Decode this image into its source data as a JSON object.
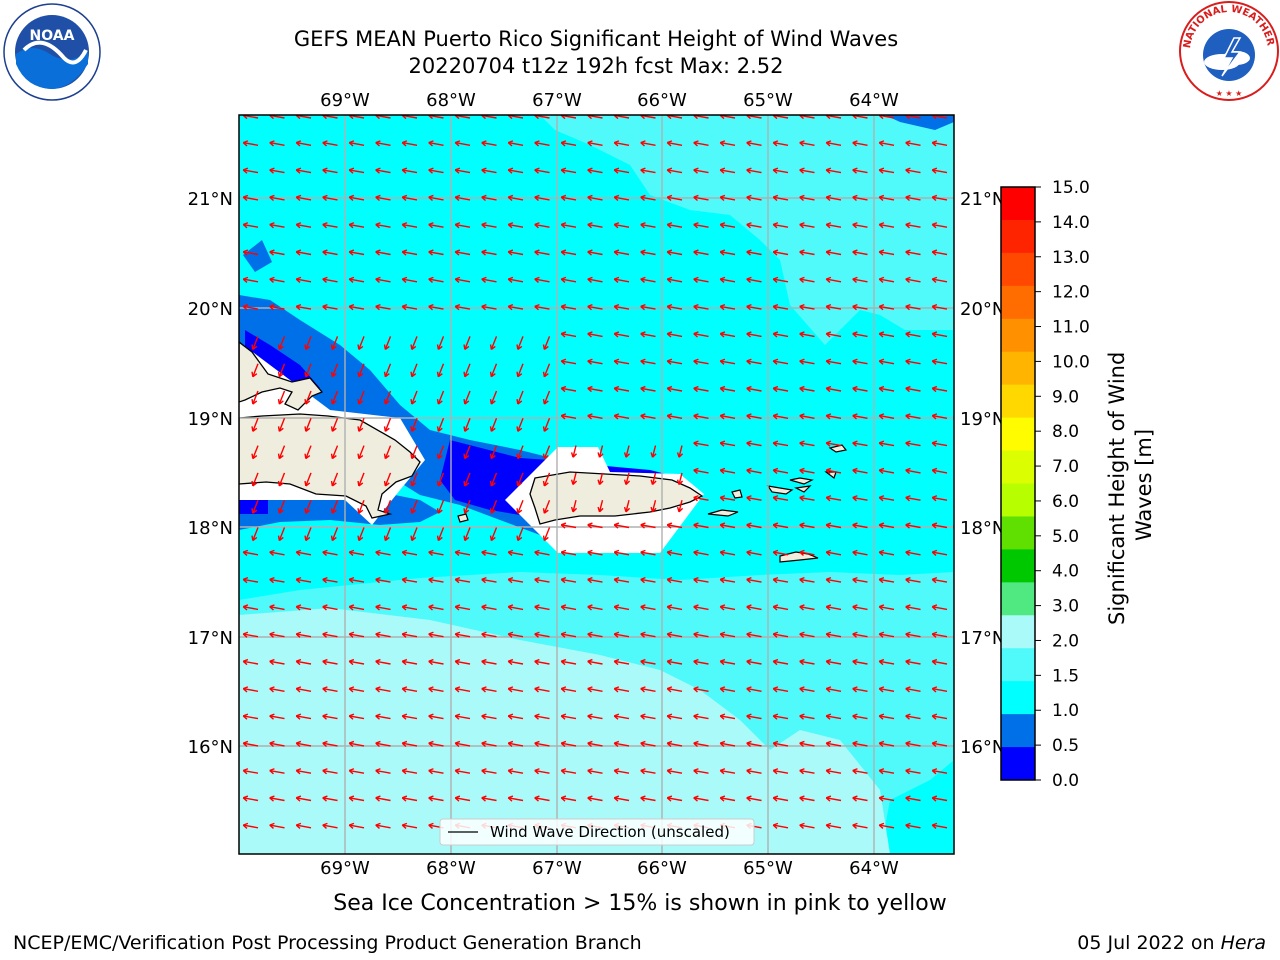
{
  "header": {
    "title_line1": "GEFS MEAN Puerto Rico Significant Height of Wind Waves",
    "title_line2": "20220704 t12z 192h fcst   Max: 2.52"
  },
  "map": {
    "lon_labels": [
      "69°W",
      "68°W",
      "67°W",
      "66°W",
      "65°W",
      "64°W"
    ],
    "lat_labels": [
      "21°N",
      "20°N",
      "19°N",
      "18°N",
      "17°N",
      "16°N"
    ],
    "legend_label": "Wind Wave Direction (unscaled)",
    "arrow_color": "#ff0000",
    "land_color": "#efedde",
    "wave_direction": "westward"
  },
  "colorbar": {
    "label": "Significant Height of Wind Waves [m]",
    "ticks": [
      "15.0",
      "14.0",
      "13.0",
      "12.0",
      "11.0",
      "10.0",
      "9.0",
      "8.0",
      "7.0",
      "6.0",
      "5.0",
      "4.0",
      "3.0",
      "2.0",
      "1.5",
      "1.0",
      "0.5",
      "0.0"
    ],
    "colors": [
      "#ff0000",
      "#ff2400",
      "#ff4800",
      "#ff6c00",
      "#ff9000",
      "#ffb400",
      "#ffd800",
      "#fffc00",
      "#dbff00",
      "#b7ff00",
      "#60e000",
      "#00c800",
      "#50e880",
      "#aafafa",
      "#50fafa",
      "#00ffff",
      "#0070e8",
      "#0000ff"
    ]
  },
  "footer": {
    "caption": "Sea Ice Concentration > 15% is shown in pink to yellow",
    "left": "NCEP/EMC/Verification Post Processing Product Generation Branch",
    "right_date": "05 Jul 2022 on ",
    "right_host": "Hera"
  },
  "logos": {
    "noaa_text": "NOAA",
    "nws_text": "NATIONAL WEATHER SERVICE"
  }
}
